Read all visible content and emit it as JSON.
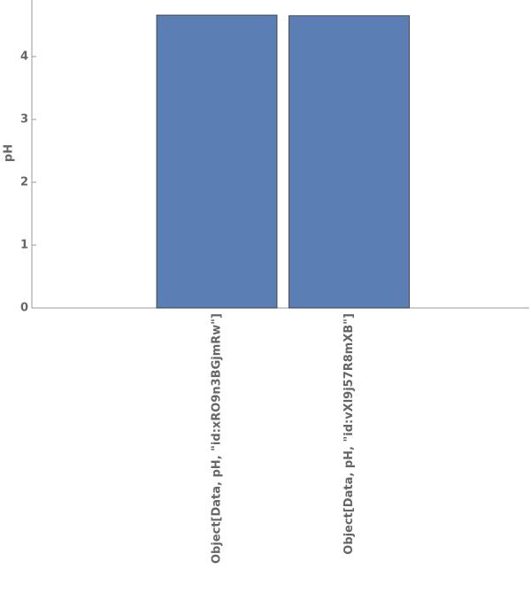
{
  "chart_data": {
    "type": "bar",
    "y_label": "pH",
    "categories": [
      "Object[Data, pH, \"id:xRO9n3BGjmRw\"]",
      "Object[Data, pH, \"id:vXl9j57R8mXB\"]"
    ],
    "values": [
      4.66,
      4.65
    ],
    "color": "#5b7fb4",
    "ylim": [
      0,
      4.9
    ],
    "yticks": [
      0,
      1,
      2,
      3,
      4
    ],
    "grid": false
  }
}
